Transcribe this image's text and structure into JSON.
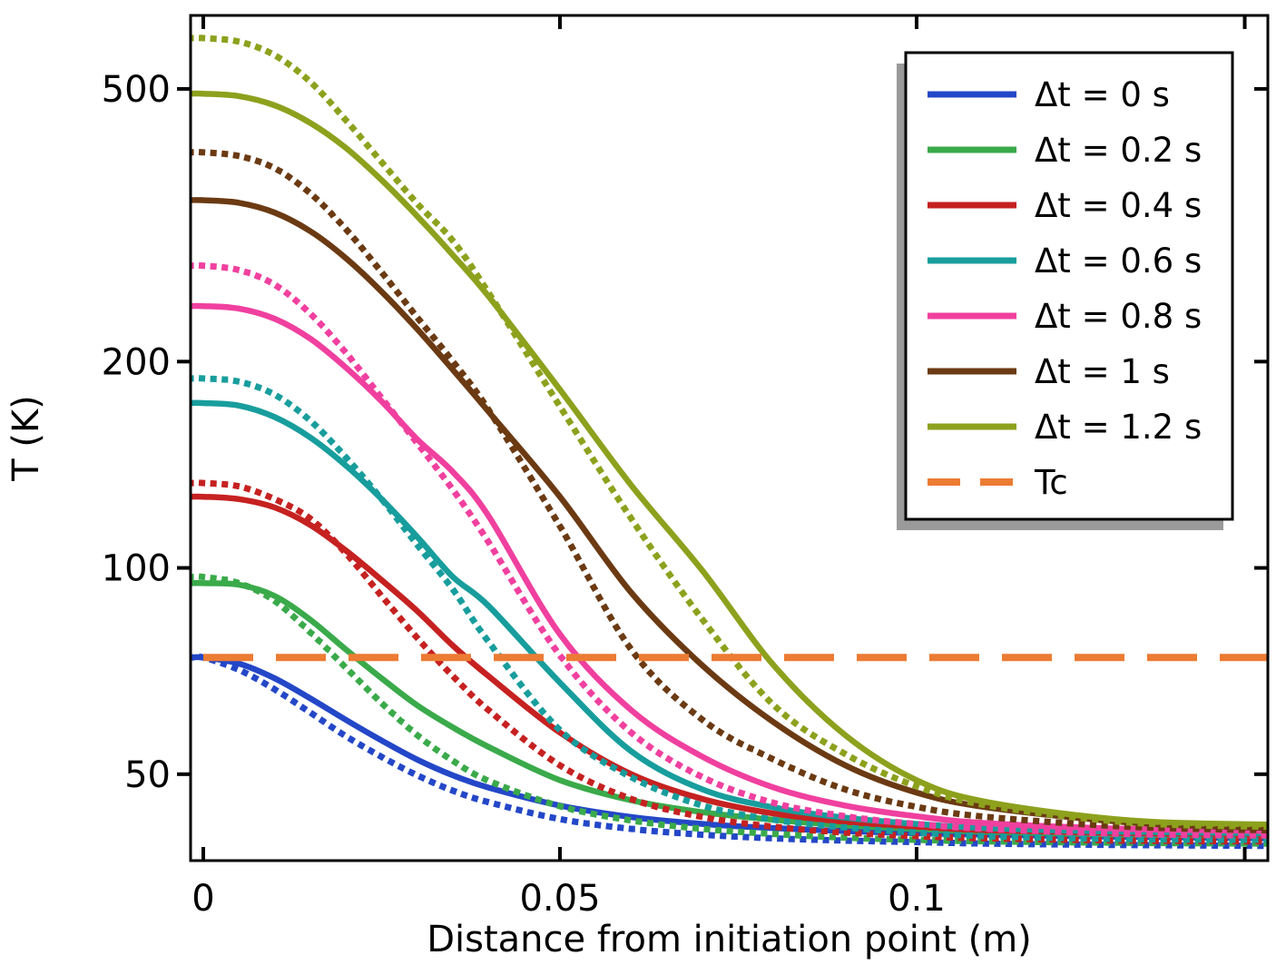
{
  "chart_data": {
    "type": "line",
    "title": "",
    "xlabel": "Distance from initiation point (m)",
    "ylabel": "T (K)",
    "x_scale": "linear",
    "y_scale": "log",
    "xlim": [
      -0.00178,
      0.14924
    ],
    "ylim": [
      37.4,
      640
    ],
    "grid": false,
    "legend_position": "top-right",
    "xticks": {
      "major": [
        0,
        0.05,
        0.1
      ],
      "labels": [
        "0",
        "0.05",
        "0.1"
      ],
      "minor": [
        0.146
      ]
    },
    "yticks": {
      "major": [
        50,
        100,
        200,
        500
      ],
      "labels": [
        "50",
        "100",
        "200",
        "500"
      ]
    },
    "x": [
      0,
      0.005,
      0.01,
      0.015,
      0.02,
      0.025,
      0.03,
      0.035,
      0.04,
      0.05,
      0.06,
      0.07,
      0.08,
      0.09,
      0.1,
      0.11,
      0.13,
      0.15
    ],
    "series": [
      {
        "label": "Δt = 0 s",
        "color": "#2447c8",
        "solid": [
          74,
          72.5,
          69,
          64.5,
          60,
          56,
          52.5,
          49.8,
          47.8,
          45,
          43.3,
          42.3,
          41.7,
          41.3,
          41,
          40.8,
          40.5,
          40.3
        ],
        "dotted": [
          74,
          71,
          66.5,
          61.5,
          56.8,
          53,
          49.8,
          47.3,
          45.5,
          43,
          41.6,
          40.8,
          40.3,
          40,
          39.8,
          39.6,
          39.4,
          39.3
        ]
      },
      {
        "label": "Δt = 0.2 s",
        "color": "#3aaa4a",
        "solid": [
          95,
          94.5,
          91,
          84,
          76,
          69,
          63,
          58.5,
          54.8,
          49,
          45.8,
          44,
          42.9,
          42.1,
          41.6,
          41.2,
          40.8,
          40.6
        ],
        "dotted": [
          97,
          95,
          89.5,
          80.5,
          71.5,
          63.5,
          57,
          52.3,
          48.9,
          44.9,
          42.8,
          41.6,
          40.9,
          40.4,
          40.1,
          39.9,
          39.7,
          39.6
        ]
      },
      {
        "label": "Δt = 0.4 s",
        "color": "#c62121",
        "solid": [
          127,
          126,
          122.5,
          115.5,
          106,
          96,
          86.5,
          77,
          69.5,
          57.5,
          50,
          46,
          43.8,
          42.6,
          41.9,
          41.4,
          41,
          40.7
        ],
        "dotted": [
          133,
          131.5,
          126,
          118,
          105,
          91,
          79,
          69.5,
          62,
          51.5,
          46,
          43.3,
          41.9,
          41.1,
          40.6,
          40.3,
          40,
          39.9
        ]
      },
      {
        "label": "Δt = 0.6 s",
        "color": "#189d9d",
        "solid": [
          174,
          172.5,
          166,
          155,
          141,
          126,
          111,
          97,
          88,
          68,
          54,
          47.5,
          44.7,
          43.2,
          42.3,
          41.7,
          41.2,
          41
        ],
        "dotted": [
          189,
          187,
          179,
          164,
          145,
          126,
          108,
          93,
          78,
          58,
          49.5,
          45,
          42.9,
          41.8,
          41.1,
          40.6,
          40.2,
          40.1
        ]
      },
      {
        "label": "Δt = 0.8 s",
        "color": "#f0409f",
        "solid": [
          241,
          239,
          231,
          216,
          196,
          175,
          154,
          138,
          119,
          80,
          62,
          53,
          47.8,
          45,
          43.4,
          42.4,
          41.6,
          41.3
        ],
        "dotted": [
          276,
          272,
          259,
          235,
          206,
          177,
          152,
          130,
          109,
          74.5,
          57.5,
          49.5,
          45.4,
          43.4,
          42.3,
          41.6,
          40.9,
          40.7
        ]
      },
      {
        "label": "Δt = 1 s",
        "color": "#6b3a13",
        "solid": [
          344,
          341,
          330,
          310,
          283,
          253,
          223,
          194.5,
          169,
          127,
          92,
          72,
          59.5,
          51.5,
          47,
          44.7,
          42.5,
          41.7
        ],
        "dotted": [
          404,
          399,
          383,
          352,
          312,
          270,
          232,
          200,
          170,
          115,
          76,
          60,
          52.5,
          47.5,
          44.8,
          43.3,
          41.9,
          41.4
        ]
      },
      {
        "label": "Δt = 1.2 s",
        "color": "#8da11d",
        "solid": [
          492,
          488,
          473,
          446,
          410,
          368,
          326,
          286,
          249,
          182,
          132,
          99,
          72,
          57,
          49,
          45.5,
          42.8,
          42.2
        ],
        "dotted": [
          593,
          586,
          560,
          512,
          450,
          391,
          340,
          300,
          252,
          172,
          118,
          84,
          63,
          53.5,
          48,
          45,
          42.5,
          41.9
        ]
      }
    ],
    "tc": {
      "label": "Tc",
      "color": "#ec7b33",
      "value": 74
    }
  }
}
